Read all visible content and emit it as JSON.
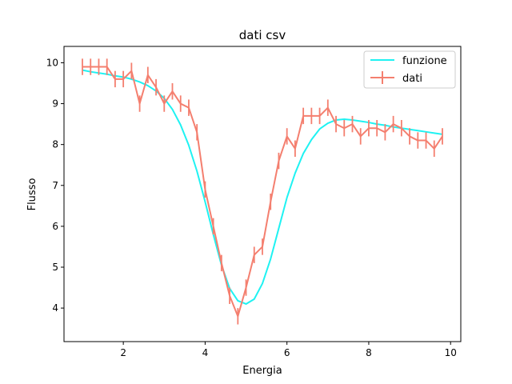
{
  "chart_data": {
    "type": "line",
    "title": "dati csv",
    "xlabel": "Energia",
    "ylabel": "Flusso",
    "xlim": [
      0.55,
      10.25
    ],
    "ylim": [
      3.18,
      10.4
    ],
    "xticks": [
      2,
      4,
      6,
      8,
      10
    ],
    "yticks": [
      4,
      5,
      6,
      7,
      8,
      9,
      10
    ],
    "grid": false,
    "legend_position": "top-right",
    "colors": {
      "funzione": "#1ff2f2",
      "dati": "#f47f6f"
    },
    "series": [
      {
        "name": "funzione",
        "x": [
          1.0,
          1.2,
          1.4,
          1.6,
          1.8,
          2.0,
          2.2,
          2.4,
          2.6,
          2.8,
          3.0,
          3.2,
          3.4,
          3.6,
          3.8,
          4.0,
          4.2,
          4.4,
          4.6,
          4.8,
          5.0,
          5.2,
          5.4,
          5.6,
          5.8,
          6.0,
          6.2,
          6.4,
          6.6,
          6.8,
          7.0,
          7.2,
          7.4,
          7.6,
          7.8,
          8.0,
          8.2,
          8.4,
          8.6,
          8.8,
          9.0,
          9.2,
          9.4,
          9.6,
          9.8
        ],
        "y": [
          9.82,
          9.78,
          9.75,
          9.72,
          9.68,
          9.65,
          9.6,
          9.53,
          9.44,
          9.31,
          9.13,
          8.86,
          8.48,
          7.98,
          7.35,
          6.6,
          5.8,
          5.05,
          4.48,
          4.18,
          4.1,
          4.22,
          4.6,
          5.2,
          5.95,
          6.7,
          7.3,
          7.78,
          8.12,
          8.38,
          8.52,
          8.6,
          8.62,
          8.6,
          8.57,
          8.54,
          8.5,
          8.47,
          8.43,
          8.4,
          8.37,
          8.34,
          8.31,
          8.28,
          8.25
        ]
      },
      {
        "name": "dati",
        "x": [
          1.0,
          1.2,
          1.4,
          1.6,
          1.8,
          2.0,
          2.2,
          2.4,
          2.6,
          2.8,
          3.0,
          3.2,
          3.4,
          3.6,
          3.8,
          4.0,
          4.2,
          4.4,
          4.6,
          4.8,
          5.0,
          5.2,
          5.4,
          5.6,
          5.8,
          6.0,
          6.2,
          6.4,
          6.6,
          6.8,
          7.0,
          7.2,
          7.4,
          7.6,
          7.8,
          8.0,
          8.2,
          8.4,
          8.6,
          8.8,
          9.0,
          9.2,
          9.4,
          9.6,
          9.8
        ],
        "y": [
          9.9,
          9.9,
          9.9,
          9.9,
          9.6,
          9.6,
          9.8,
          9.0,
          9.7,
          9.4,
          9.0,
          9.3,
          9.0,
          8.9,
          8.3,
          6.9,
          6.0,
          5.1,
          4.3,
          3.8,
          4.5,
          5.3,
          5.5,
          6.6,
          7.6,
          8.2,
          7.9,
          8.7,
          8.7,
          8.7,
          8.9,
          8.5,
          8.4,
          8.5,
          8.2,
          8.4,
          8.4,
          8.3,
          8.5,
          8.4,
          8.2,
          8.1,
          8.1,
          7.9,
          8.2
        ],
        "yerr": 0.2
      }
    ]
  }
}
